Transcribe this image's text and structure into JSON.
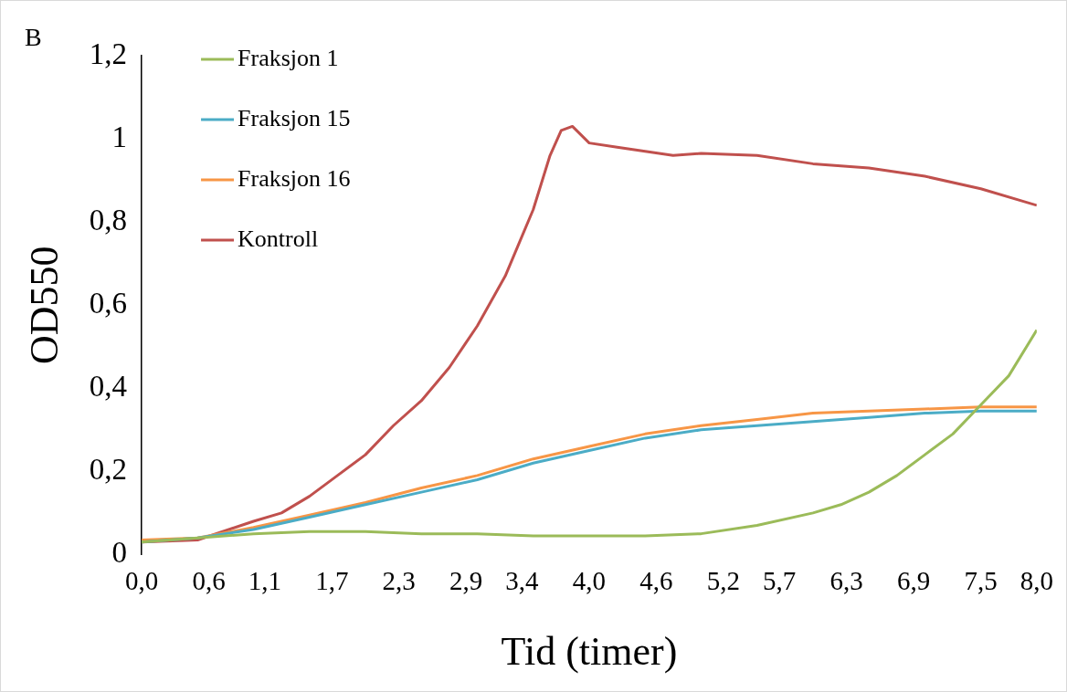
{
  "chart_data": {
    "type": "line",
    "xlabel": "Tid (timer)",
    "ylabel": "OD550",
    "annotations": [
      "B"
    ],
    "xlim": [
      0,
      8
    ],
    "xticks": [
      {
        "value": 0,
        "label": "0,0"
      },
      {
        "value": 0.6,
        "label": "0,6"
      },
      {
        "value": 1.1,
        "label": "1,1"
      },
      {
        "value": 1.7,
        "label": "1,7"
      },
      {
        "value": 2.3,
        "label": "2,3"
      },
      {
        "value": 2.9,
        "label": "2,9"
      },
      {
        "value": 3.4,
        "label": "3,4"
      },
      {
        "value": 4,
        "label": "4,0"
      },
      {
        "value": 4.6,
        "label": "4,6"
      },
      {
        "value": 5.2,
        "label": "5,2"
      },
      {
        "value": 5.7,
        "label": "5,7"
      },
      {
        "value": 6.3,
        "label": "6,3"
      },
      {
        "value": 6.9,
        "label": "6,9"
      },
      {
        "value": 7.5,
        "label": "7,5"
      },
      {
        "value": 8,
        "label": "8,0"
      }
    ],
    "ylim": [
      0,
      1.2
    ],
    "yticks": [
      0,
      {
        "value": 0.2,
        "label": "0,2"
      },
      {
        "value": 0.4,
        "label": "0,4"
      },
      {
        "value": 0.6,
        "label": "0,6"
      },
      {
        "value": 0.8,
        "label": "0,8"
      },
      1,
      {
        "value": 1.2,
        "label": "1,2"
      }
    ],
    "grid": false,
    "legend": "top left",
    "marker": "none",
    "line_style": "solid",
    "series": [
      {
        "name": "Fraksjon 1",
        "color": "#9bbb59",
        "x": [
          0,
          0.5,
          1,
          1.5,
          2,
          2.5,
          3,
          3.5,
          4,
          4.5,
          5,
          5.5,
          6,
          6.25,
          6.5,
          6.75,
          7,
          7.25,
          7.5,
          7.75,
          8
        ],
        "values": [
          0.03,
          0.04,
          0.05,
          0.055,
          0.055,
          0.05,
          0.05,
          0.045,
          0.045,
          0.045,
          0.05,
          0.07,
          0.1,
          0.12,
          0.15,
          0.19,
          0.24,
          0.29,
          0.36,
          0.43,
          0.54
        ]
      },
      {
        "name": "Fraksjon 15",
        "color": "#4bacc6",
        "x": [
          0,
          0.5,
          1,
          1.5,
          2,
          2.5,
          3,
          3.5,
          4,
          4.5,
          5,
          5.5,
          6,
          6.5,
          7,
          7.5,
          8
        ],
        "values": [
          0.03,
          0.04,
          0.06,
          0.09,
          0.12,
          0.15,
          0.18,
          0.22,
          0.25,
          0.28,
          0.3,
          0.31,
          0.32,
          0.33,
          0.34,
          0.345,
          0.345
        ]
      },
      {
        "name": "Fraksjon 16",
        "color": "#f79646",
        "x": [
          0,
          0.5,
          1,
          1.5,
          2,
          2.5,
          3,
          3.5,
          4,
          4.5,
          5,
          5.5,
          6,
          6.5,
          7,
          7.5,
          8
        ],
        "values": [
          0.035,
          0.04,
          0.065,
          0.095,
          0.125,
          0.16,
          0.19,
          0.23,
          0.26,
          0.29,
          0.31,
          0.325,
          0.34,
          0.345,
          0.35,
          0.355,
          0.355
        ]
      },
      {
        "name": "Kontroll",
        "color": "#c0504d",
        "x": [
          0,
          0.5,
          1,
          1.25,
          1.5,
          1.75,
          2,
          2.25,
          2.5,
          2.75,
          3,
          3.25,
          3.5,
          3.65,
          3.75,
          3.85,
          4,
          4.25,
          4.5,
          4.75,
          5,
          5.5,
          6,
          6.5,
          7,
          7.5,
          8
        ],
        "values": [
          0.03,
          0.035,
          0.08,
          0.1,
          0.14,
          0.19,
          0.24,
          0.31,
          0.37,
          0.45,
          0.55,
          0.67,
          0.83,
          0.96,
          1.02,
          1.03,
          0.99,
          0.98,
          0.97,
          0.96,
          0.965,
          0.96,
          0.94,
          0.93,
          0.91,
          0.88,
          0.84
        ]
      }
    ]
  }
}
